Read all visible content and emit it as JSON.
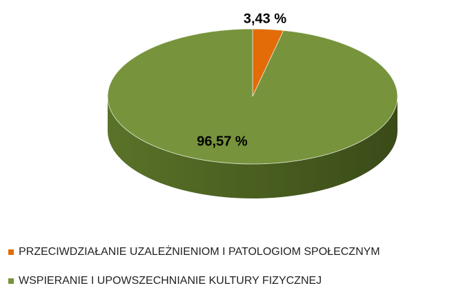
{
  "chart_data": {
    "type": "pie",
    "categories": [
      "PRZECIWDZIAŁANIE UZALEŻNIENIOM I PATOLOGIOM SPOŁECZNYM",
      "WSPIERANIE I UPOWSZECHNIANIE KULTURY FIZYCZNEJ"
    ],
    "values": [
      3.43,
      96.57
    ],
    "value_labels": [
      "3,43 %",
      "96,57 %"
    ],
    "colors": [
      "#e36c09",
      "#77933c"
    ],
    "legend": "bottom"
  }
}
